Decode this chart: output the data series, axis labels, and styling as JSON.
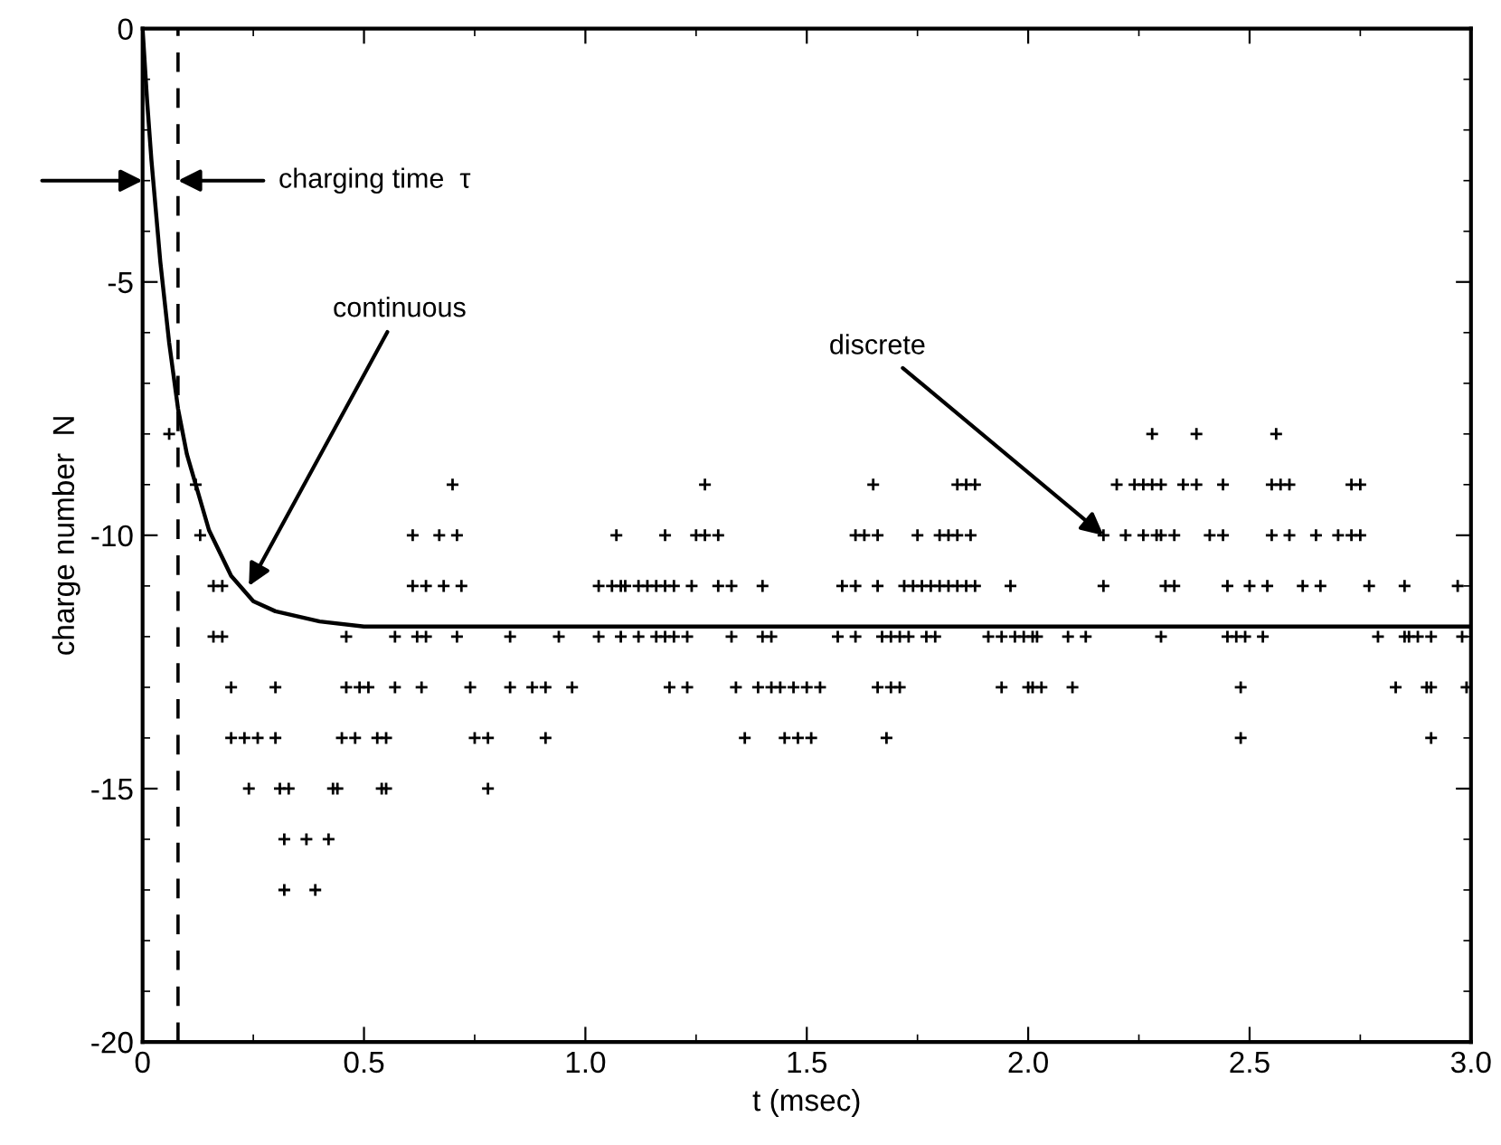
{
  "chart_data": {
    "type": "scatter",
    "xlabel": "t (msec)",
    "ylabel": "charge number  N",
    "xlim": [
      0,
      3.0
    ],
    "ylim": [
      -20,
      0
    ],
    "xticks": [
      0,
      0.5,
      {
        "value": 1.0,
        "label": "1.0"
      },
      {
        "value": 1.5,
        "label": "1.5"
      },
      {
        "value": 2.0,
        "label": "2.0"
      },
      {
        "value": 2.5,
        "label": "2.5"
      },
      {
        "value": 3.0,
        "label": "3.0"
      }
    ],
    "yticks": [
      0,
      -5,
      -10,
      -15,
      -20
    ],
    "grid": false,
    "legend": false,
    "marker": "cross",
    "ref_lines": [
      {
        "axis": "x",
        "value": 0.08,
        "color": "#000000",
        "line_style": "dashed"
      }
    ],
    "annotations": [
      "charging time  τ",
      {
        "text": "continuous",
        "x": 0.24,
        "y": -11
      },
      {
        "text": "discrete",
        "x": 2.17,
        "y": -10
      }
    ],
    "series": [
      {
        "type": "line",
        "color": "#000000",
        "marker": "none",
        "line_style": "solid",
        "x": [
          0,
          0.01,
          0.02,
          0.04,
          0.06,
          0.08,
          0.1,
          0.15,
          0.2,
          0.25,
          0.3,
          0.4,
          0.5,
          0.6,
          3.0
        ],
        "values": [
          0,
          -1.4,
          -2.6,
          -4.6,
          -6.2,
          -7.5,
          -8.4,
          -9.9,
          -10.8,
          -11.3,
          -11.5,
          -11.7,
          -11.8,
          -11.8,
          -11.8
        ]
      },
      {
        "color": "#000000",
        "x": [
          0.06,
          0.12,
          0.7,
          0.13,
          0.61,
          0.67,
          0.71,
          0.16,
          0.18,
          0.61,
          0.64,
          0.68,
          0.72,
          0.16,
          0.18,
          0.46,
          0.57,
          0.62,
          0.64,
          0.71,
          0.83,
          0.94,
          0.2,
          0.3,
          0.46,
          0.49,
          0.51,
          0.57,
          0.63,
          0.74,
          0.83,
          0.88,
          0.91,
          0.97,
          0.2,
          0.23,
          0.26,
          0.3,
          0.45,
          0.48,
          0.53,
          0.55,
          0.75,
          0.78,
          0.91,
          0.24,
          0.31,
          0.33,
          0.43,
          0.44,
          0.54,
          0.55,
          0.78,
          0.32,
          0.37,
          0.42,
          0.32,
          0.39,
          1.27,
          1.65,
          1.84,
          1.86,
          1.88,
          1.07,
          1.18,
          1.25,
          1.27,
          1.3,
          1.61,
          1.63,
          1.66,
          1.75,
          1.8,
          1.82,
          1.84,
          1.87,
          1.03,
          1.06,
          1.08,
          1.09,
          1.12,
          1.14,
          1.16,
          1.18,
          1.2,
          1.24,
          1.3,
          1.33,
          1.4,
          1.58,
          1.61,
          1.66,
          1.72,
          1.74,
          1.76,
          1.78,
          1.8,
          1.82,
          1.84,
          1.86,
          1.88,
          1.96,
          1.03,
          1.08,
          1.12,
          1.16,
          1.18,
          1.2,
          1.23,
          1.33,
          1.4,
          1.42,
          1.57,
          1.61,
          1.67,
          1.69,
          1.71,
          1.73,
          1.77,
          1.79,
          1.91,
          1.94,
          1.97,
          1.19,
          1.23,
          1.34,
          1.39,
          1.42,
          1.44,
          1.47,
          1.5,
          1.53,
          1.66,
          1.69,
          1.71,
          1.94,
          2.0,
          1.36,
          1.45,
          1.48,
          1.51,
          1.68,
          2.28,
          2.38,
          2.56,
          2.2,
          2.24,
          2.26,
          2.28,
          2.3,
          2.35,
          2.38,
          2.44,
          2.55,
          2.57,
          2.59,
          2.73,
          2.75,
          2.17,
          2.22,
          2.26,
          2.29,
          2.3,
          2.33,
          2.41,
          2.44,
          2.55,
          2.59,
          2.65,
          2.7,
          2.73,
          2.75,
          2.17,
          2.31,
          2.33,
          2.45,
          2.5,
          2.54,
          2.62,
          2.66,
          2.77,
          2.85,
          2.97,
          1.99,
          2.01,
          2.02,
          2.09,
          2.13,
          2.3,
          2.45,
          2.47,
          2.49,
          2.53,
          2.79,
          2.85,
          2.86,
          2.88,
          2.91,
          2.98,
          2.01,
          2.03,
          2.1,
          2.48,
          2.83,
          2.9,
          2.91,
          2.99,
          2.48,
          2.91
        ],
        "values": [
          -8,
          -9,
          -9,
          -10,
          -10,
          -10,
          -10,
          -11,
          -11,
          -11,
          -11,
          -11,
          -11,
          -12,
          -12,
          -12,
          -12,
          -12,
          -12,
          -12,
          -12,
          -12,
          -13,
          -13,
          -13,
          -13,
          -13,
          -13,
          -13,
          -13,
          -13,
          -13,
          -13,
          -13,
          -14,
          -14,
          -14,
          -14,
          -14,
          -14,
          -14,
          -14,
          -14,
          -14,
          -14,
          -15,
          -15,
          -15,
          -15,
          -15,
          -15,
          -15,
          -15,
          -16,
          -16,
          -16,
          -17,
          -17,
          -9,
          -9,
          -9,
          -9,
          -9,
          -10,
          -10,
          -10,
          -10,
          -10,
          -10,
          -10,
          -10,
          -10,
          -10,
          -10,
          -10,
          -10,
          -11,
          -11,
          -11,
          -11,
          -11,
          -11,
          -11,
          -11,
          -11,
          -11,
          -11,
          -11,
          -11,
          -11,
          -11,
          -11,
          -11,
          -11,
          -11,
          -11,
          -11,
          -11,
          -11,
          -11,
          -11,
          -11,
          -12,
          -12,
          -12,
          -12,
          -12,
          -12,
          -12,
          -12,
          -12,
          -12,
          -12,
          -12,
          -12,
          -12,
          -12,
          -12,
          -12,
          -12,
          -12,
          -12,
          -12,
          -13,
          -13,
          -13,
          -13,
          -13,
          -13,
          -13,
          -13,
          -13,
          -13,
          -13,
          -13,
          -13,
          -13,
          -14,
          -14,
          -14,
          -14,
          -14,
          -8,
          -8,
          -8,
          -9,
          -9,
          -9,
          -9,
          -9,
          -9,
          -9,
          -9,
          -9,
          -9,
          -9,
          -9,
          -9,
          -10,
          -10,
          -10,
          -10,
          -10,
          -10,
          -10,
          -10,
          -10,
          -10,
          -10,
          -10,
          -10,
          -10,
          -11,
          -11,
          -11,
          -11,
          -11,
          -11,
          -11,
          -11,
          -11,
          -11,
          -11,
          -12,
          -12,
          -12,
          -12,
          -12,
          -12,
          -12,
          -12,
          -12,
          -12,
          -12,
          -12,
          -12,
          -12,
          -12,
          -12,
          -13,
          -13,
          -13,
          -13,
          -13,
          -13,
          -13,
          -13,
          -14,
          -14
        ]
      }
    ]
  }
}
